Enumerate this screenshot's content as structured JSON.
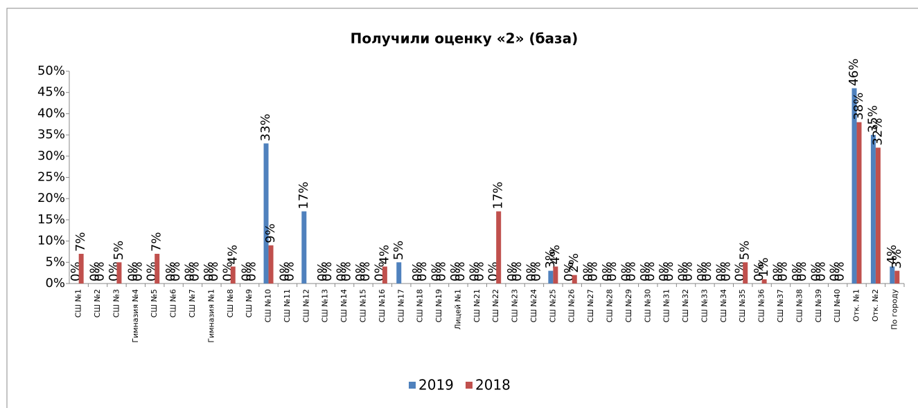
{
  "chart_data": {
    "type": "bar",
    "title": "Получили оценку «2» (база)",
    "categories": [
      "СШ №1",
      "СШ №2",
      "СШ №3",
      "Гимназия №4",
      "СШ №5",
      "СШ №6",
      "СШ №7",
      "Гимназия №1",
      "СШ №8",
      "СШ №9",
      "СШ №10",
      "СШ №11",
      "СШ №12",
      "СШ №13",
      "СШ №14",
      "СШ №15",
      "СШ №16",
      "СШ №17",
      "СШ №18",
      "СШ №19",
      "Лицей №1",
      "СШ №21",
      "СШ №22",
      "СШ №23",
      "СШ №24",
      "СШ №25",
      "СШ №26",
      "СШ №27",
      "СШ №28",
      "СШ №29",
      "СШ №30",
      "СШ №31",
      "СШ №32",
      "СШ №33",
      "СШ №34",
      "СШ №35",
      "СШ №36",
      "СШ №37",
      "СШ №38",
      "СШ №39",
      "СШ №40",
      "Отк. №1",
      "Отк. №2",
      "По городу"
    ],
    "series": [
      {
        "name": "2019",
        "color": "#4f81bd",
        "values": [
          0,
          0,
          0,
          0,
          0,
          0,
          0,
          0,
          0,
          0,
          33,
          0,
          17,
          0,
          0,
          0,
          0,
          5,
          0,
          0,
          0,
          0,
          0,
          0,
          0,
          3,
          0,
          0,
          0,
          0,
          0,
          0,
          0,
          0,
          0,
          0,
          0,
          0,
          0,
          0,
          0,
          46,
          35,
          4
        ],
        "value_labels": [
          "0%",
          "0%",
          "0%",
          "0%",
          "0%",
          "0%",
          "0%",
          "0%",
          "0%",
          "0%",
          "33%",
          "0%",
          "17%",
          "0%",
          "0%",
          "0%",
          "0%",
          "5%",
          "0%",
          "0%",
          "0%",
          "0%",
          "0%",
          "0%",
          "0%",
          "3%",
          "0%",
          "0%",
          "0%",
          "0%",
          "0%",
          "0%",
          "0%",
          "0%",
          "0%",
          "0%",
          "0%",
          "0%",
          "0%",
          "0%",
          "0%",
          "46%",
          "35%",
          "4%"
        ]
      },
      {
        "name": "2018",
        "color": "#c0504d",
        "values": [
          7,
          0,
          5,
          0,
          7,
          0,
          0,
          0,
          4,
          0,
          9,
          0,
          null,
          0,
          0,
          0,
          4,
          null,
          0,
          0,
          0,
          0,
          17,
          0,
          0,
          4,
          2,
          0,
          0,
          0,
          0,
          0,
          0,
          0,
          0,
          5,
          1,
          0,
          0,
          0,
          0,
          38,
          32,
          3
        ],
        "value_labels": [
          "7%",
          "0%",
          "5%",
          "0%",
          "7%",
          "0%",
          "0%",
          "0%",
          "4%",
          "0%",
          "9%",
          "0%",
          null,
          "0%",
          "0%",
          "0%",
          "4%",
          null,
          "0%",
          "0%",
          "0%",
          "0%",
          "17%",
          "0%",
          "0%",
          "4%",
          "2%",
          "0%",
          "0%",
          "0%",
          "0%",
          "0%",
          "0%",
          "0%",
          "0%",
          "5%",
          "1%",
          "0%",
          "0%",
          "0%",
          "0%",
          "38%",
          "32%",
          "3%"
        ]
      }
    ],
    "ylim": [
      0,
      50
    ],
    "yticks": [
      {
        "value": 0,
        "label": "0%"
      },
      {
        "value": 5,
        "label": "5%"
      },
      {
        "value": 10,
        "label": "10%"
      },
      {
        "value": 15,
        "label": "15%"
      },
      {
        "value": 20,
        "label": "20%"
      },
      {
        "value": 25,
        "label": "25%"
      },
      {
        "value": 30,
        "label": "30%"
      },
      {
        "value": 35,
        "label": "35%"
      },
      {
        "value": 40,
        "label": "40%"
      },
      {
        "value": 45,
        "label": "45%"
      },
      {
        "value": 50,
        "label": "50%"
      }
    ],
    "legend": "bottom"
  }
}
